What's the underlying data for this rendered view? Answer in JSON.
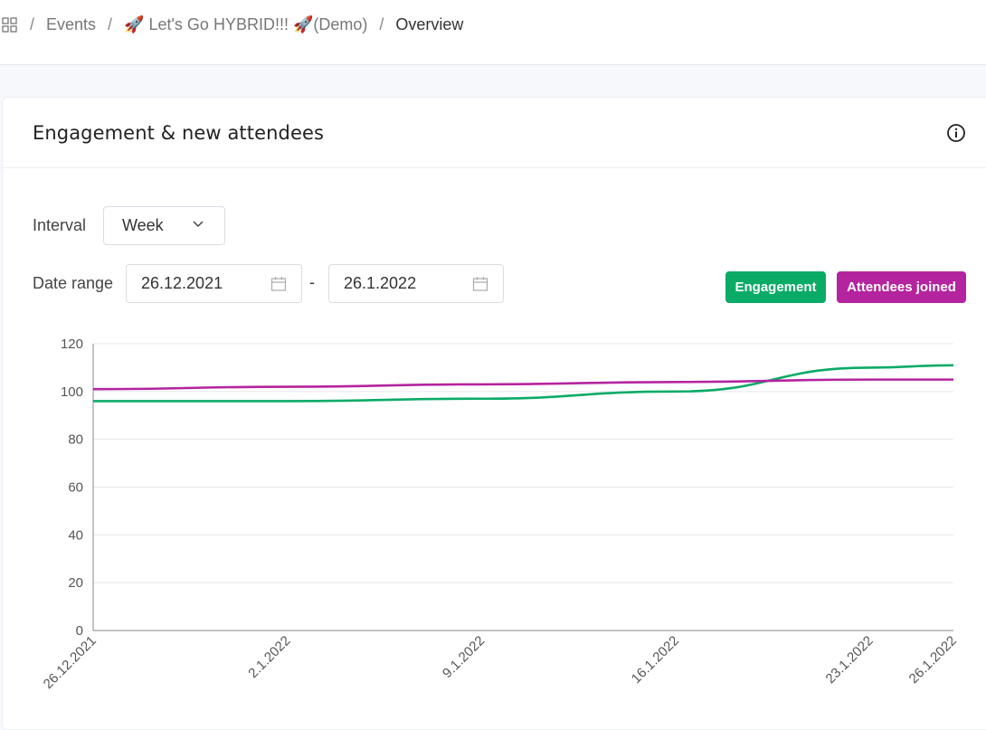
{
  "breadcrumb": {
    "items": [
      "Events",
      "🚀 Let's Go HYBRID!!! 🚀(Demo)"
    ],
    "current": "Overview",
    "separator": "/"
  },
  "card": {
    "title": "Engagement & new attendees",
    "interval_label": "Interval",
    "interval_value": "Week",
    "date_range_label": "Date range",
    "date_from": "26.12.2021",
    "date_to": "26.1.2022",
    "date_separator": "-"
  },
  "colors": {
    "engagement": "#0aab67",
    "attendees": "#b4249f"
  },
  "chart_data": {
    "type": "line",
    "x": [
      "26.12.2021",
      "2.1.2022",
      "9.1.2022",
      "16.1.2022",
      "23.1.2022",
      "26.1.2022"
    ],
    "x_ticks": [
      "26.12.2021",
      "2.1.2022",
      "9.1.2022",
      "16.1.2022",
      "23.1.2022",
      "26.1.2022"
    ],
    "ylim": [
      0,
      120
    ],
    "y_ticks": [
      0,
      20,
      40,
      60,
      80,
      100,
      120
    ],
    "series": [
      {
        "name": "Engagement",
        "color": "#0aab67",
        "values": [
          96,
          96,
          97,
          100,
          110,
          111
        ]
      },
      {
        "name": "Attendees joined",
        "color": "#b4249f",
        "values": [
          101,
          102,
          103,
          104,
          105,
          105
        ]
      }
    ],
    "legend": "top-right",
    "grid": true
  }
}
